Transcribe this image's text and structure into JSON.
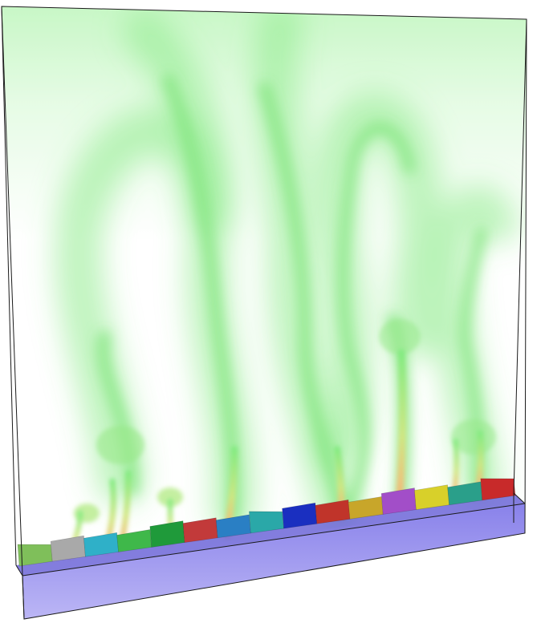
{
  "scene": {
    "subject": "volume-rendered-thermal-plumes",
    "colors": {
      "background": "#ffffff",
      "plume_green": "#3ee03a",
      "plume_yellow": "#e6d23a",
      "plume_orange": "#e8922f",
      "substrate_blue": "#8f88ee",
      "outline": "#1a1a1a"
    },
    "grains": [
      "#7fbf5a",
      "#a9a9a9",
      "#2fb0c8",
      "#3fb84a",
      "#1f9a3a",
      "#c23a3a",
      "#2a7fc4",
      "#2aa8a8",
      "#1a2fc0",
      "#c0342a",
      "#c8a62a",
      "#a24ec8",
      "#d8d02a",
      "#2a9f8a",
      "#c82a2a"
    ]
  }
}
